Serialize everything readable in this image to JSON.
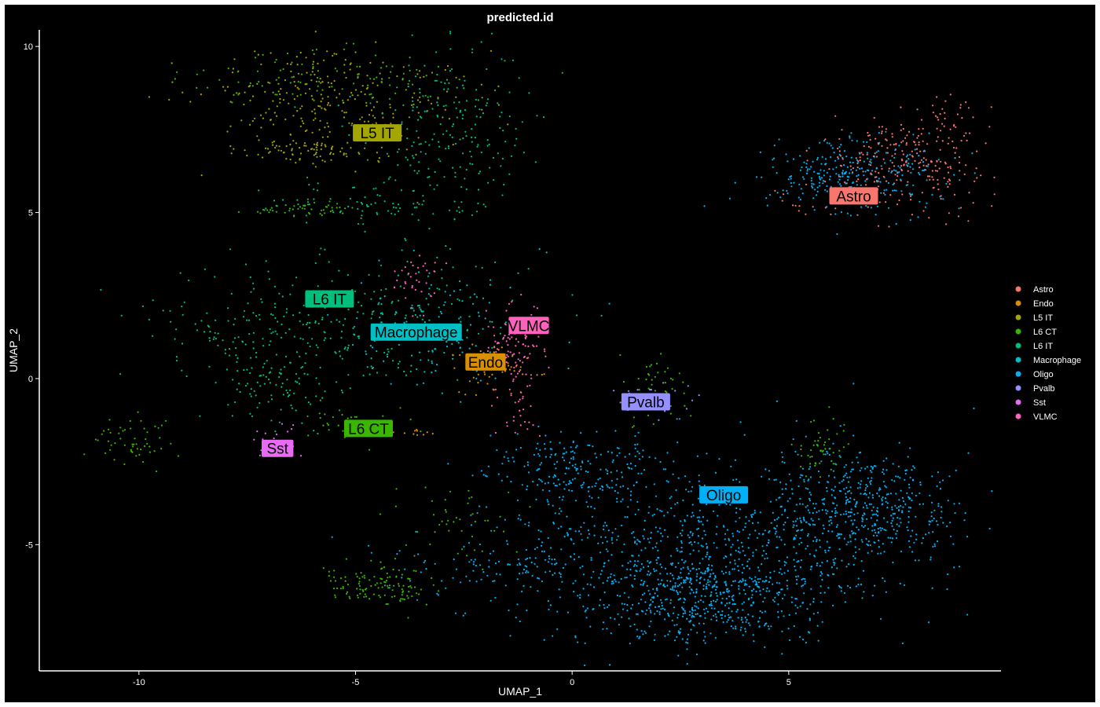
{
  "chart_data": {
    "type": "scatter",
    "title": "predicted.id",
    "xlabel": "UMAP_1",
    "ylabel": "UMAP_2",
    "xlim": [
      -12.3,
      9.9
    ],
    "ylim": [
      -8.8,
      10.5
    ],
    "x_ticks": [
      -10,
      -5,
      0,
      5
    ],
    "x_tick_labels": [
      "-10",
      "-5",
      "0",
      "5"
    ],
    "y_ticks": [
      -5,
      0,
      5,
      10
    ],
    "y_tick_labels": [
      "-5",
      "0",
      "5",
      "10"
    ],
    "grid": false,
    "legend_position": "right",
    "background": "#000000",
    "series": [
      {
        "name": "Astro",
        "color": "#F8766D"
      },
      {
        "name": "Endo",
        "color": "#D89000"
      },
      {
        "name": "L5 IT",
        "color": "#A3A500"
      },
      {
        "name": "L6 CT",
        "color": "#39B600"
      },
      {
        "name": "L6 IT",
        "color": "#00BF7D"
      },
      {
        "name": "Macrophage",
        "color": "#00BFC4"
      },
      {
        "name": "Oligo",
        "color": "#00B0F6"
      },
      {
        "name": "Pvalb",
        "color": "#9590FF"
      },
      {
        "name": "Sst",
        "color": "#E76BF3"
      },
      {
        "name": "VLMC",
        "color": "#FF62BC"
      }
    ],
    "clusters": [
      {
        "series": "Astro",
        "points": 300,
        "regions": [
          {
            "x": 7.6,
            "y": 6.4,
            "sx": 1.0,
            "sy": 0.7,
            "w": 1
          },
          {
            "x": 8.7,
            "y": 7.8,
            "sx": 0.3,
            "sy": 0.4,
            "w": 0.2
          },
          {
            "x": 5.6,
            "y": 5.2,
            "sx": 0.5,
            "sy": 0.3,
            "w": 0.1
          }
        ]
      },
      {
        "series": "Oligo",
        "points": 2300,
        "regions": [
          {
            "x": 3.0,
            "y": -5.0,
            "sx": 2.6,
            "sy": 1.3,
            "w": 1
          },
          {
            "x": 3.3,
            "y": -6.6,
            "sx": 1.3,
            "sy": 0.7,
            "w": 0.6
          },
          {
            "x": 6.7,
            "y": -3.8,
            "sx": 1.0,
            "sy": 0.8,
            "w": 0.5
          },
          {
            "x": 6.4,
            "y": 6.1,
            "sx": 1.0,
            "sy": 0.55,
            "w": 0.35
          },
          {
            "x": 0.0,
            "y": -2.6,
            "sx": 1.0,
            "sy": 0.5,
            "w": 0.2
          },
          {
            "x": -1.6,
            "y": -5.6,
            "sx": 1.4,
            "sy": 0.4,
            "w": 0.12
          }
        ]
      },
      {
        "series": "L5 IT",
        "points": 350,
        "regions": [
          {
            "x": -5.5,
            "y": 8.4,
            "sx": 1.5,
            "sy": 0.8,
            "w": 1
          },
          {
            "x": -5.9,
            "y": 6.9,
            "sx": 0.8,
            "sy": 0.2,
            "w": 0.3
          }
        ]
      },
      {
        "series": "L6 IT",
        "points": 700,
        "regions": [
          {
            "x": -3.0,
            "y": 7.6,
            "sx": 1.0,
            "sy": 1.2,
            "w": 0.8
          },
          {
            "x": -5.5,
            "y": 1.8,
            "sx": 2.0,
            "sy": 0.9,
            "w": 1
          },
          {
            "x": -6.8,
            "y": 0.2,
            "sx": 0.9,
            "sy": 0.9,
            "w": 0.5
          },
          {
            "x": -4.6,
            "y": 5.3,
            "sx": 1.2,
            "sy": 0.4,
            "w": 0.3
          }
        ]
      },
      {
        "series": "L6 CT",
        "points": 500,
        "regions": [
          {
            "x": -4.5,
            "y": -6.2,
            "sx": 0.6,
            "sy": 0.35,
            "w": 0.8
          },
          {
            "x": -5.8,
            "y": 9.0,
            "sx": 1.8,
            "sy": 0.5,
            "w": 0.6
          },
          {
            "x": -10.1,
            "y": -1.9,
            "sx": 0.5,
            "sy": 0.4,
            "w": 0.4
          },
          {
            "x": -6.2,
            "y": 5.1,
            "sx": 0.6,
            "sy": 0.1,
            "w": 0.3
          },
          {
            "x": -5.3,
            "y": -1.5,
            "sx": 0.8,
            "sy": 0.3,
            "w": 0.3
          },
          {
            "x": 1.9,
            "y": -0.3,
            "sx": 0.4,
            "sy": 0.5,
            "w": 0.3
          },
          {
            "x": 5.8,
            "y": -2.1,
            "sx": 0.3,
            "sy": 0.5,
            "w": 0.3
          },
          {
            "x": -2.8,
            "y": -4.5,
            "sx": 0.7,
            "sy": 0.7,
            "w": 0.3
          }
        ]
      },
      {
        "series": "Macrophage",
        "points": 160,
        "regions": [
          {
            "x": -3.3,
            "y": 1.5,
            "sx": 1.1,
            "sy": 1.0,
            "w": 1
          }
        ]
      },
      {
        "series": "VLMC",
        "points": 160,
        "regions": [
          {
            "x": -1.4,
            "y": 1.0,
            "sx": 0.4,
            "sy": 0.6,
            "w": 1
          },
          {
            "x": -1.2,
            "y": -0.9,
            "sx": 0.3,
            "sy": 0.5,
            "w": 0.5
          },
          {
            "x": -3.6,
            "y": 3.0,
            "sx": 0.3,
            "sy": 0.5,
            "w": 0.4
          }
        ]
      },
      {
        "series": "Endo",
        "points": 70,
        "regions": [
          {
            "x": -1.8,
            "y": 0.3,
            "sx": 0.5,
            "sy": 0.4,
            "w": 1
          },
          {
            "x": -3.8,
            "y": -1.6,
            "sx": 0.2,
            "sy": 0.05,
            "w": 0.3
          }
        ]
      },
      {
        "series": "Pvalb",
        "points": 30,
        "regions": [
          {
            "x": 1.8,
            "y": -0.6,
            "sx": 0.5,
            "sy": 0.3,
            "w": 1
          }
        ]
      },
      {
        "series": "Sst",
        "points": 20,
        "regions": [
          {
            "x": -6.9,
            "y": -1.9,
            "sx": 0.4,
            "sy": 0.3,
            "w": 1
          }
        ]
      }
    ],
    "cluster_labels": [
      {
        "text": "Astro",
        "series": "Astro",
        "x": 6.5,
        "y": 5.5
      },
      {
        "text": "L5 IT",
        "series": "L5 IT",
        "x": -4.5,
        "y": 7.4
      },
      {
        "text": "L6 IT",
        "series": "L6 IT",
        "x": -5.6,
        "y": 2.4
      },
      {
        "text": "Macrophage",
        "series": "Macrophage",
        "x": -3.6,
        "y": 1.4
      },
      {
        "text": "VLMC",
        "series": "VLMC",
        "x": -1.0,
        "y": 1.6
      },
      {
        "text": "Endo",
        "series": "Endo",
        "x": -2.0,
        "y": 0.5
      },
      {
        "text": "Pvalb",
        "series": "Pvalb",
        "x": 1.7,
        "y": -0.7
      },
      {
        "text": "L6 CT",
        "series": "L6 CT",
        "x": -4.7,
        "y": -1.5
      },
      {
        "text": "Sst",
        "series": "Sst",
        "x": -6.8,
        "y": -2.1
      },
      {
        "text": "Oligo",
        "series": "Oligo",
        "x": 3.5,
        "y": -3.5
      }
    ]
  }
}
